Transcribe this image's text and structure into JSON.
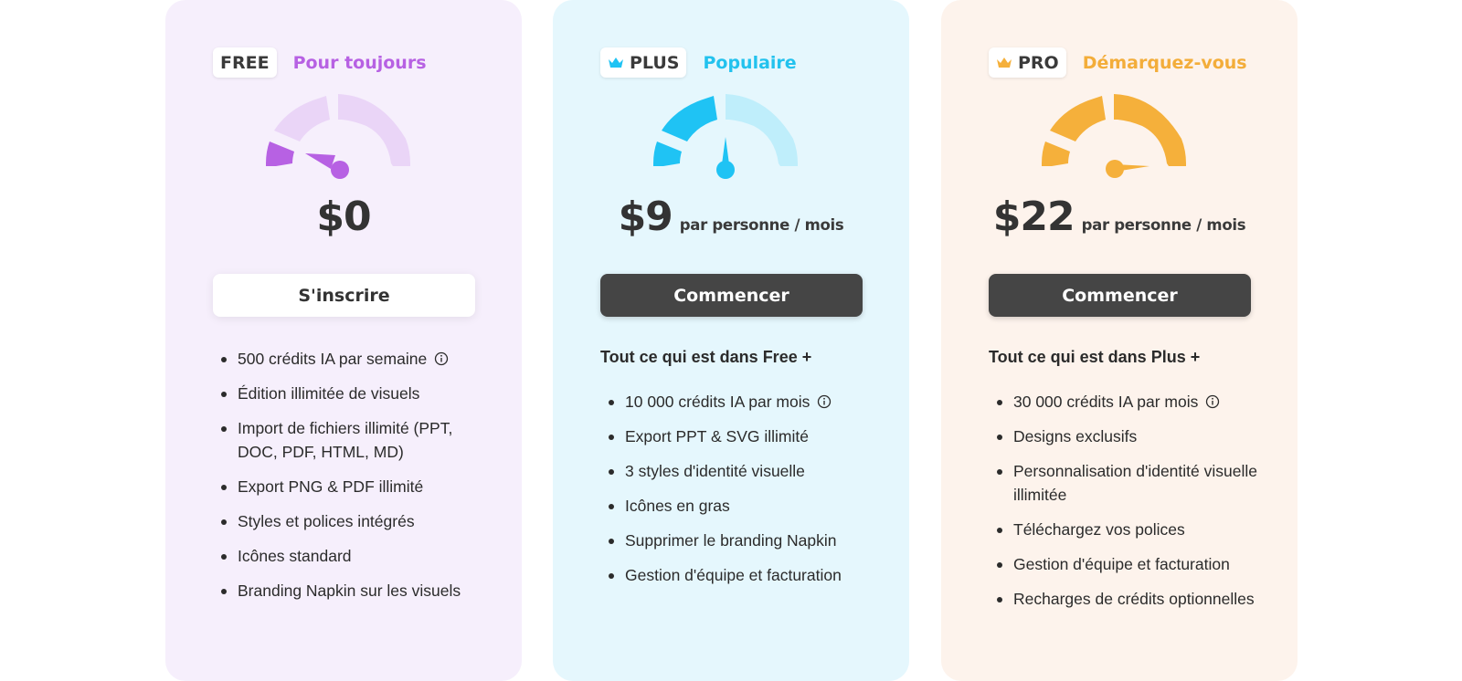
{
  "colors": {
    "free_accent": "#b761e3",
    "free_light": "#ead5f7",
    "plus_accent": "#1fc3f4",
    "plus_light": "#bfeefb",
    "pro_accent": "#f5b03b",
    "pro_light": "#f5b03b",
    "dark_button": "#454545"
  },
  "plans": [
    {
      "badge": "FREE",
      "badge_icon": null,
      "tagline": "Pour toujours",
      "gauge_level": 1,
      "price": "$0",
      "period": "",
      "cta": "S'inscrire",
      "intro": "",
      "features": [
        "500 crédits IA par semaine",
        "Édition illimitée de visuels",
        "Import de fichiers illimité (PPT, DOC, PDF, HTML, MD)",
        "Export PNG & PDF illimité",
        "Styles et polices intégrés",
        "Icônes standard",
        "Branding Napkin sur les visuels"
      ]
    },
    {
      "badge": "PLUS",
      "badge_icon": "crown-icon",
      "tagline": "Populaire",
      "gauge_level": 2,
      "price": "$9",
      "period": "par personne / mois",
      "cta": "Commencer",
      "intro": "Tout ce qui est dans Free +",
      "features": [
        "10 000 crédits IA par mois",
        "Export PPT & SVG illimité",
        "3 styles d'identité visuelle",
        "Icônes en gras",
        "Supprimer le branding Napkin",
        "Gestion d'équipe et facturation"
      ]
    },
    {
      "badge": "PRO",
      "badge_icon": "crown-icon",
      "tagline": "Démarquez-vous",
      "gauge_level": 3,
      "price": "$22",
      "period": "par personne / mois",
      "cta": "Commencer",
      "intro": "Tout ce qui est dans Plus +",
      "features": [
        "30 000 crédits IA par mois",
        "Designs exclusifs",
        "Personnalisation d'identité visuelle illimitée",
        "Téléchargez vos polices",
        "Gestion d'équipe et facturation",
        "Recharges de crédits optionnelles"
      ]
    }
  ]
}
